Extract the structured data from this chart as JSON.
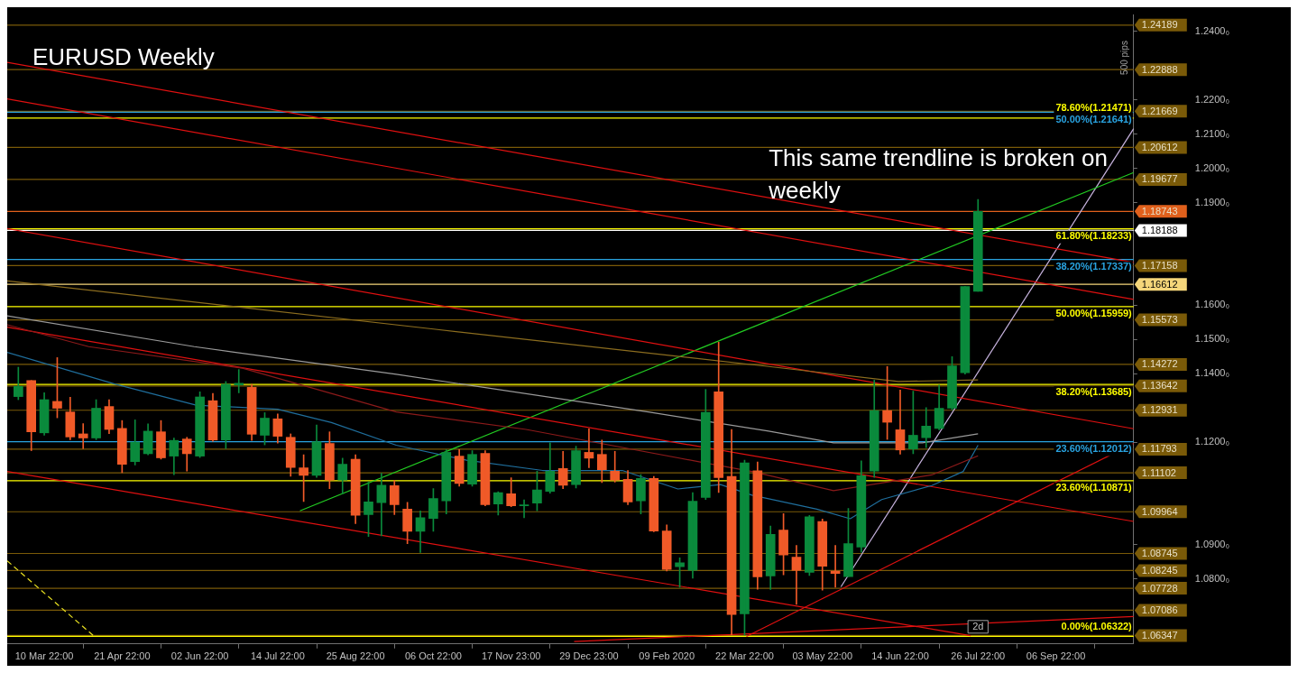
{
  "chart_data": {
    "type": "candlestick",
    "title": "EURUSD Weekly",
    "x": [
      "2019-02-24",
      "2019-03-03",
      "2019-03-10",
      "2019-03-17",
      "2019-03-24",
      "2019-03-31",
      "2019-04-07",
      "2019-04-14",
      "2019-04-21",
      "2019-04-28",
      "2019-05-05",
      "2019-05-12",
      "2019-05-19",
      "2019-05-26",
      "2019-06-02",
      "2019-06-09",
      "2019-06-16",
      "2019-06-23",
      "2019-06-30",
      "2019-07-07",
      "2019-07-14",
      "2019-07-21",
      "2019-07-28",
      "2019-08-04",
      "2019-08-11",
      "2019-08-18",
      "2019-08-25",
      "2019-09-01",
      "2019-09-08",
      "2019-09-15",
      "2019-09-22",
      "2019-09-29",
      "2019-10-06",
      "2019-10-13",
      "2019-10-20",
      "2019-10-27",
      "2019-11-03",
      "2019-11-10",
      "2019-11-17",
      "2019-11-24",
      "2019-12-01",
      "2019-12-08",
      "2019-12-15",
      "2019-12-22",
      "2019-12-29",
      "2020-01-05",
      "2020-01-12",
      "2020-01-19",
      "2020-01-26",
      "2020-02-02",
      "2020-02-09",
      "2020-02-16",
      "2020-02-23",
      "2020-03-01",
      "2020-03-08",
      "2020-03-15",
      "2020-03-22",
      "2020-03-29",
      "2020-04-05",
      "2020-04-12",
      "2020-04-19",
      "2020-04-26",
      "2020-05-03",
      "2020-05-10",
      "2020-05-17",
      "2020-05-24",
      "2020-05-31",
      "2020-06-07",
      "2020-06-14",
      "2020-06-21",
      "2020-06-28",
      "2020-07-05",
      "2020-07-12",
      "2020-07-19",
      "2020-07-26"
    ],
    "ohlc": [
      [
        1.1333,
        1.1419,
        1.1324,
        1.1363
      ],
      [
        1.138,
        1.138,
        1.1175,
        1.123
      ],
      [
        1.1227,
        1.1344,
        1.122,
        1.1324
      ],
      [
        1.1319,
        1.1447,
        1.1271,
        1.1299
      ],
      [
        1.1288,
        1.1331,
        1.1207,
        1.1215
      ],
      [
        1.1224,
        1.1254,
        1.1181,
        1.1212
      ],
      [
        1.1212,
        1.1324,
        1.1207,
        1.1299
      ],
      [
        1.1304,
        1.1324,
        1.1225,
        1.1237
      ],
      [
        1.124,
        1.1263,
        1.1111,
        1.1135
      ],
      [
        1.1143,
        1.1265,
        1.1133,
        1.12
      ],
      [
        1.1166,
        1.1253,
        1.1163,
        1.1232
      ],
      [
        1.123,
        1.1263,
        1.115,
        1.1154
      ],
      [
        1.1159,
        1.1212,
        1.1105,
        1.1205
      ],
      [
        1.1209,
        1.1214,
        1.1115,
        1.1166
      ],
      [
        1.1159,
        1.1347,
        1.1155,
        1.1332
      ],
      [
        1.1321,
        1.1342,
        1.1202,
        1.1206
      ],
      [
        1.1206,
        1.1377,
        1.1181,
        1.1369
      ],
      [
        1.1367,
        1.1412,
        1.1344,
        1.1372
      ],
      [
        1.136,
        1.1369,
        1.1205,
        1.1223
      ],
      [
        1.122,
        1.1286,
        1.1192,
        1.127
      ],
      [
        1.1268,
        1.1282,
        1.1197,
        1.1217
      ],
      [
        1.1214,
        1.1224,
        1.11,
        1.1126
      ],
      [
        1.1125,
        1.1163,
        1.1026,
        1.1103
      ],
      [
        1.1103,
        1.125,
        1.1097,
        1.1201
      ],
      [
        1.1196,
        1.123,
        1.1064,
        1.1089
      ],
      [
        1.1089,
        1.1153,
        1.1049,
        1.1135
      ],
      [
        1.115,
        1.1163,
        1.0962,
        1.0986
      ],
      [
        1.0988,
        1.1084,
        1.0924,
        1.1025
      ],
      [
        1.1023,
        1.1109,
        1.0926,
        1.1074
      ],
      [
        1.1073,
        1.1088,
        1.0988,
        1.1017
      ],
      [
        1.1004,
        1.1024,
        1.0903,
        1.0939
      ],
      [
        1.0939,
        1.0999,
        1.0877,
        1.0979
      ],
      [
        1.0977,
        1.1064,
        1.0939,
        1.1035
      ],
      [
        1.1028,
        1.1178,
        1.099,
        1.117
      ],
      [
        1.1159,
        1.1178,
        1.1071,
        1.1079
      ],
      [
        1.1077,
        1.1175,
        1.1071,
        1.1164
      ],
      [
        1.1167,
        1.1175,
        1.1014,
        1.1017
      ],
      [
        1.1019,
        1.1055,
        1.0987,
        1.1052
      ],
      [
        1.1049,
        1.1096,
        1.1011,
        1.1014
      ],
      [
        1.1014,
        1.1031,
        1.0979,
        1.1016
      ],
      [
        1.1022,
        1.1115,
        1.0999,
        1.106
      ],
      [
        1.1056,
        1.1198,
        1.1051,
        1.1115
      ],
      [
        1.1123,
        1.1173,
        1.1064,
        1.1074
      ],
      [
        1.1076,
        1.1188,
        1.1066,
        1.1175
      ],
      [
        1.117,
        1.1239,
        1.1125,
        1.1153
      ],
      [
        1.1164,
        1.1206,
        1.1082,
        1.1119
      ],
      [
        1.1115,
        1.1173,
        1.1083,
        1.1089
      ],
      [
        1.1091,
        1.1117,
        1.1017,
        1.1025
      ],
      [
        1.1028,
        1.1105,
        1.099,
        1.1094
      ],
      [
        1.1094,
        1.11,
        1.0938,
        1.094
      ],
      [
        1.094,
        1.0958,
        1.0823,
        1.0828
      ],
      [
        1.0836,
        1.0862,
        1.0776,
        1.0847
      ],
      [
        1.0825,
        1.1052,
        1.0802,
        1.1027
      ],
      [
        1.1038,
        1.1354,
        1.1032,
        1.1287
      ],
      [
        1.1347,
        1.1492,
        1.1053,
        1.1096
      ],
      [
        1.11,
        1.1237,
        1.0636,
        1.0696
      ],
      [
        1.0698,
        1.1147,
        1.0636,
        1.1139
      ],
      [
        1.1116,
        1.1142,
        1.077,
        1.0806
      ],
      [
        1.0809,
        1.0955,
        1.0769,
        1.093
      ],
      [
        1.0943,
        1.0991,
        1.0812,
        1.087
      ],
      [
        1.0864,
        1.0898,
        1.0726,
        1.0825
      ],
      [
        1.0819,
        1.0986,
        1.081,
        1.0982
      ],
      [
        1.0968,
        1.0975,
        1.0767,
        1.0837
      ],
      [
        1.0823,
        1.0898,
        1.0776,
        1.0816
      ],
      [
        1.0807,
        1.1006,
        1.0807,
        1.0903
      ],
      [
        1.0893,
        1.1145,
        1.0878,
        1.1102
      ],
      [
        1.1115,
        1.1381,
        1.1097,
        1.1292
      ],
      [
        1.1292,
        1.1421,
        1.1208,
        1.1258
      ],
      [
        1.1236,
        1.1352,
        1.1165,
        1.1177
      ],
      [
        1.118,
        1.1349,
        1.1166,
        1.122
      ],
      [
        1.1213,
        1.1301,
        1.1184,
        1.1247
      ],
      [
        1.124,
        1.1367,
        1.1236,
        1.1299
      ],
      [
        1.1299,
        1.145,
        1.1294,
        1.1423
      ],
      [
        1.1403,
        1.1655,
        1.1399,
        1.1655
      ],
      [
        1.1641,
        1.1909,
        1.1641,
        1.1874
      ]
    ],
    "colors": [
      "#0a8a3c",
      "#f05a28",
      "#0a8a3c",
      "#f05a28",
      "#f05a28",
      "#f05a28",
      "#0a8a3c",
      "#f05a28",
      "#f05a28",
      "#0a8a3c",
      "#0a8a3c",
      "#f05a28",
      "#0a8a3c",
      "#f05a28",
      "#0a8a3c",
      "#f05a28",
      "#0a8a3c",
      "#0a8a3c",
      "#f05a28",
      "#0a8a3c",
      "#f05a28",
      "#f05a28",
      "#f05a28",
      "#0a8a3c",
      "#f05a28",
      "#0a8a3c",
      "#f05a28",
      "#0a8a3c",
      "#0a8a3c",
      "#f05a28",
      "#f05a28",
      "#0a8a3c",
      "#0a8a3c",
      "#0a8a3c",
      "#f05a28",
      "#0a8a3c",
      "#f05a28",
      "#0a8a3c",
      "#f05a28",
      "#0a8a3c",
      "#0a8a3c",
      "#0a8a3c",
      "#f05a28",
      "#0a8a3c",
      "#f05a28",
      "#f05a28",
      "#f05a28",
      "#f05a28",
      "#0a8a3c",
      "#f05a28",
      "#f05a28",
      "#0a8a3c",
      "#0a8a3c",
      "#0a8a3c",
      "#f05a28",
      "#f05a28",
      "#0a8a3c",
      "#f05a28",
      "#0a8a3c",
      "#f05a28",
      "#f05a28",
      "#0a8a3c",
      "#f05a28",
      "#f05a28",
      "#0a8a3c",
      "#0a8a3c",
      "#0a8a3c",
      "#f05a28",
      "#f05a28",
      "#0a8a3c",
      "#0a8a3c",
      "#0a8a3c",
      "#0a8a3c",
      "#0a8a3c",
      "#0a8a3c"
    ],
    "series": [
      {
        "type": "line",
        "color": "#8c6d1f",
        "x": [
          "2019-02-18",
          "2019-10-05",
          "2020-04-04",
          "2020-06-13",
          "2020-07-26"
        ],
        "values": [
          1.1671,
          1.1531,
          1.1421,
          1.1377,
          1.1382
        ]
      },
      {
        "type": "line",
        "color": "#9a9a9a",
        "x": [
          "2019-02-18",
          "2019-05-30",
          "2019-09-16",
          "2020-01-30",
          "2020-04-04",
          "2020-05-09",
          "2020-06-26",
          "2020-07-26"
        ],
        "values": [
          1.1569,
          1.1479,
          1.1398,
          1.1288,
          1.1232,
          1.1198,
          1.1198,
          1.1224
        ]
      },
      {
        "type": "line",
        "color": "#8b1a1a",
        "x": [
          "2019-02-18",
          "2019-04-03",
          "2019-06-25",
          "2019-09-16",
          "2019-11-25",
          "2020-02-29",
          "2020-03-26",
          "2020-05-09",
          "2020-07-01",
          "2020-07-26"
        ],
        "values": [
          1.1543,
          1.1479,
          1.1416,
          1.1288,
          1.1237,
          1.114,
          1.1114,
          1.1058,
          1.1104,
          1.116
        ]
      },
      {
        "type": "line",
        "color": "#1f6e9c",
        "x": [
          "2019-02-18",
          "2019-04-17",
          "2019-05-31",
          "2019-07-14",
          "2019-08-12",
          "2019-09-16",
          "2019-10-24",
          "2019-12-04",
          "2020-01-16",
          "2020-02-15",
          "2020-03-09",
          "2020-03-26",
          "2020-04-30",
          "2020-05-18",
          "2020-06-04",
          "2020-07-01",
          "2020-07-18",
          "2020-07-26"
        ],
        "values": [
          1.1462,
          1.137,
          1.1308,
          1.1296,
          1.1257,
          1.1191,
          1.1147,
          1.1117,
          1.1117,
          1.1063,
          1.1076,
          1.1045,
          1.1004,
          1.0976,
          1.1032,
          1.1073,
          1.1114,
          1.1191
        ]
      },
      {
        "type": "line",
        "color": "#e01010",
        "x": [
          "2019-02-18",
          "2020-10-18"
        ],
        "values": [
          1.231,
          1.1725
        ]
      },
      {
        "type": "line",
        "color": "#e01010",
        "x": [
          "2019-02-18",
          "2020-10-18"
        ],
        "values": [
          1.2203,
          1.1617
        ]
      },
      {
        "type": "line",
        "color": "#e01010",
        "x": [
          "2019-02-18",
          "2020-10-18"
        ],
        "values": [
          1.1824,
          1.1239
        ]
      },
      {
        "type": "line",
        "color": "#e01010",
        "x": [
          "2019-02-18",
          "2020-10-18"
        ],
        "values": [
          1.1536,
          1.0968
        ]
      },
      {
        "type": "line",
        "color": "#e01010",
        "x": [
          "2019-02-18",
          "2020-07-22"
        ],
        "values": [
          1.1114,
          1.0634
        ]
      },
      {
        "type": "line",
        "color": "#e01010",
        "x": [
          "2020-03-23",
          "2020-10-18"
        ],
        "values": [
          1.0632,
          1.1196
        ]
      },
      {
        "type": "line",
        "color": "#e01010",
        "x": [
          "2019-12-21",
          "2020-10-18"
        ],
        "values": [
          1.0617,
          1.069
        ]
      },
      {
        "type": "line",
        "color": "#22cc22",
        "x": [
          "2019-07-26",
          "2020-10-18"
        ],
        "values": [
          1.0999,
          1.1988
        ]
      },
      {
        "type": "line",
        "color": "#c8b4e0",
        "x": [
          "2020-05-13",
          "2020-10-18"
        ],
        "values": [
          1.0777,
          1.2116
        ]
      },
      {
        "type": "line",
        "color": "#e8e020",
        "line_style": "dashed",
        "x": [
          "2019-02-18",
          "2019-04-06"
        ],
        "values": [
          1.0853,
          1.0632
        ]
      }
    ],
    "xlim": [
      "2019-02-18",
      "2020-10-18"
    ],
    "xticks": [
      {
        "value": "2019-03-10",
        "label": "10 Mar 22:00"
      },
      {
        "value": "2019-04-21",
        "label": "21 Apr 22:00"
      },
      {
        "value": "2019-06-02",
        "label": "02 Jun 22:00"
      },
      {
        "value": "2019-07-14",
        "label": "14 Jul 22:00"
      },
      {
        "value": "2019-08-25",
        "label": "25 Aug 22:00"
      },
      {
        "value": "2019-10-06",
        "label": "06 Oct 22:00"
      },
      {
        "value": "2019-11-17",
        "label": "17 Nov 23:00"
      },
      {
        "value": "2019-12-29",
        "label": "29 Dec 23:00"
      },
      {
        "value": "2020-02-09",
        "label": "09 Feb 2020"
      },
      {
        "value": "2020-03-22",
        "label": "22 Mar 22:00"
      },
      {
        "value": "2020-05-03",
        "label": "03 May 22:00"
      },
      {
        "value": "2020-06-14",
        "label": "14 Jun 22:00"
      },
      {
        "value": "2020-07-26",
        "label": "26 Jul 22:00"
      },
      {
        "value": "2020-09-06",
        "label": "06 Sep 22:00"
      }
    ],
    "ylim": [
      1.061,
      1.245
    ],
    "yticks": [
      {
        "value": 1.24,
        "label": "1.2400₀"
      },
      {
        "value": 1.22,
        "label": "1.2200₀"
      },
      {
        "value": 1.21,
        "label": "1.2100₀"
      },
      {
        "value": 1.2,
        "label": "1.2000₀"
      },
      {
        "value": 1.19,
        "label": "1.1900₀"
      },
      {
        "value": 1.16,
        "label": "1.1600₀"
      },
      {
        "value": 1.15,
        "label": "1.1500₀"
      },
      {
        "value": 1.14,
        "label": "1.1400₀"
      },
      {
        "value": 1.12,
        "label": "1.1200₀"
      },
      {
        "value": 1.09,
        "label": "1.0900₀"
      },
      {
        "value": 1.08,
        "label": "1.0800₀"
      }
    ],
    "ref_lines": [
      {
        "axis": "y",
        "value": 1.24189,
        "label": "1.24189",
        "color": "#7a5a08"
      },
      {
        "axis": "y",
        "value": 1.22888,
        "label": "1.22888",
        "color": "#7a5a08"
      },
      {
        "axis": "y",
        "value": 1.21669,
        "label": "1.21669",
        "color": "#7a5a08"
      },
      {
        "axis": "y",
        "value": 1.20612,
        "label": "1.20612",
        "color": "#7a5a08"
      },
      {
        "axis": "y",
        "value": 1.19677,
        "label": "1.19677",
        "color": "#7a5a08"
      },
      {
        "axis": "y",
        "value": 1.18743,
        "label": "1.18743",
        "color": "#e0601c"
      },
      {
        "axis": "y",
        "value": 1.18188,
        "label": "1.18188",
        "color": "#ffffff"
      },
      {
        "axis": "y",
        "value": 1.17158,
        "label": "1.17158",
        "color": "#7a5a08"
      },
      {
        "axis": "y",
        "value": 1.16612,
        "label": "1.16612",
        "color": "#f5d67a"
      },
      {
        "axis": "y",
        "value": 1.15573,
        "label": "1.15573",
        "color": "#7a5a08"
      },
      {
        "axis": "y",
        "value": 1.14272,
        "label": "1.14272",
        "color": "#7a5a08"
      },
      {
        "axis": "y",
        "value": 1.13642,
        "label": "1.13642",
        "color": "#7a5a08"
      },
      {
        "axis": "y",
        "value": 1.12931,
        "label": "1.12931",
        "color": "#7a5a08"
      },
      {
        "axis": "y",
        "value": 1.11793,
        "label": "1.11793",
        "color": "#7a5a08"
      },
      {
        "axis": "y",
        "value": 1.11102,
        "label": "1.11102",
        "color": "#7a5a08"
      },
      {
        "axis": "y",
        "value": 1.09964,
        "label": "1.09964",
        "color": "#7a5a08"
      },
      {
        "axis": "y",
        "value": 1.08745,
        "label": "1.08745",
        "color": "#7a5a08"
      },
      {
        "axis": "y",
        "value": 1.08245,
        "label": "1.08245",
        "color": "#7a5a08"
      },
      {
        "axis": "y",
        "value": 1.07728,
        "label": "1.07728",
        "color": "#7a5a08"
      },
      {
        "axis": "y",
        "value": 1.07086,
        "label": "1.07086",
        "color": "#7a5a08"
      },
      {
        "axis": "y",
        "value": 1.06347,
        "label": "1.06347",
        "color": "#7a5a08"
      },
      {
        "axis": "y",
        "value": 1.21641,
        "color": "#29a3e0"
      },
      {
        "axis": "y",
        "value": 1.17337,
        "color": "#29a3e0"
      },
      {
        "axis": "y",
        "value": 1.12012,
        "color": "#29a3e0"
      },
      {
        "axis": "y",
        "value": 1.21471,
        "color": "#ffff00"
      },
      {
        "axis": "y",
        "value": 1.18233,
        "color": "#ffff00"
      },
      {
        "axis": "y",
        "value": 1.15959,
        "color": "#ffff00"
      },
      {
        "axis": "y",
        "value": 1.13685,
        "color": "#ffff00"
      },
      {
        "axis": "y",
        "value": 1.10871,
        "color": "#ffff00"
      },
      {
        "axis": "y",
        "value": 1.06322,
        "color": "#ffff00"
      }
    ],
    "annotations": [
      "This same trendline is broken on weekly",
      "500 pips",
      "2d",
      {
        "text": "50.00%(1.21641)",
        "x": "2020-10-18",
        "y": 1.21641
      },
      {
        "text": "78.60%(1.21471)",
        "x": "2020-10-18",
        "y": 1.21471
      },
      {
        "text": "61.80%(1.18233)",
        "x": "2020-10-18",
        "y": 1.18233
      },
      {
        "text": "38.20%(1.17337)",
        "x": "2020-10-18",
        "y": 1.17337
      },
      {
        "text": "50.00%(1.15959)",
        "x": "2020-10-18",
        "y": 1.15959
      },
      {
        "text": "38.20%(1.13685)",
        "x": "2020-10-18",
        "y": 1.13685
      },
      {
        "text": "23.60%(1.12012)",
        "x": "2020-10-18",
        "y": 1.12012
      },
      {
        "text": "23.60%(1.10871)",
        "x": "2020-10-18",
        "y": 1.10871
      },
      {
        "text": "0.00%(1.06322)",
        "x": "2020-10-18",
        "y": 1.06322
      }
    ]
  }
}
